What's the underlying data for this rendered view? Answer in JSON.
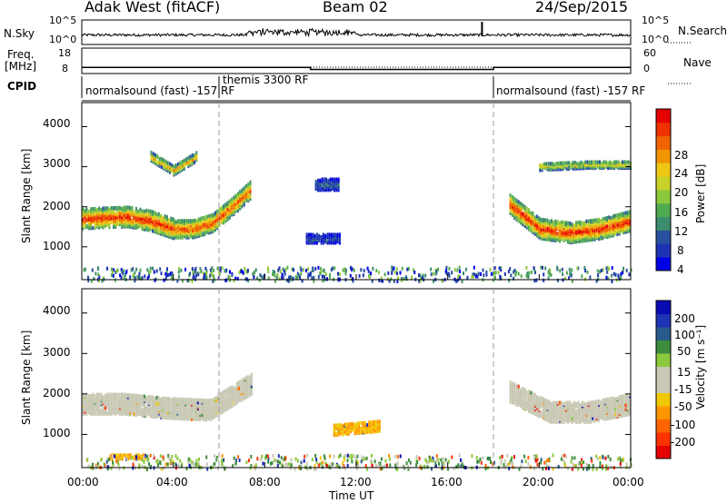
{
  "header": {
    "station": "Adak West (fitACF)",
    "beam": "Beam 02",
    "date": "24/Sep/2015"
  },
  "panels": {
    "noise": {
      "left_label": "N.Sky",
      "right_label": "N.Search",
      "left_ticks": [
        "10^5",
        "10^0"
      ],
      "right_ticks": [
        "10^5",
        "10^0"
      ]
    },
    "freq": {
      "left_label_1": "Freq.",
      "left_label_2": "[MHz]",
      "right_label": "Nave",
      "left_ticks": [
        "18",
        "8"
      ],
      "right_ticks": [
        "60",
        "0"
      ],
      "segments": [
        {
          "start_h": 0.0,
          "end_h": 6.0,
          "freq_mhz": 10.4
        },
        {
          "start_h": 6.0,
          "end_h": 10.0,
          "freq_mhz": 10.4
        },
        {
          "start_h": 10.0,
          "end_h": 18.0,
          "freq_mhz": 9.6
        },
        {
          "start_h": 18.0,
          "end_h": 24.0,
          "freq_mhz": 10.4
        }
      ]
    },
    "cpid": {
      "label": "CPID",
      "modes": [
        {
          "start_h": 0.0,
          "name": "normalsound (fast) -157 RF"
        },
        {
          "start_h": 6.0,
          "name": "themis 3300 RF"
        },
        {
          "start_h": 18.0,
          "name": "normalsound (fast) -157 RF"
        }
      ]
    }
  },
  "chart_data": [
    {
      "type": "heatmap",
      "name": "power",
      "ylabel": "Slant Range [km]",
      "xlabel": "Time UT",
      "x_range_h": [
        0,
        24
      ],
      "y_range_km": [
        180,
        4600
      ],
      "y_ticks": [
        "4000",
        "3000",
        "2000",
        "1000"
      ],
      "y_tick_values": [
        4000,
        3000,
        2000,
        1000
      ],
      "colorbar": {
        "label": "Power [dB]",
        "ticks": [
          "28",
          "24",
          "20",
          "16",
          "12",
          "8",
          "4"
        ],
        "tick_values": [
          28,
          24,
          20,
          16,
          12,
          8,
          4
        ],
        "range": [
          0,
          30
        ],
        "colors": [
          "#0000e6",
          "#1e32b4",
          "#2850a0",
          "#3c8c6e",
          "#50aa50",
          "#8cc83c",
          "#c8d228",
          "#f0c814",
          "#f09600",
          "#f06400",
          "#f03200",
          "#e60000"
        ]
      },
      "features": [
        {
          "t0": 0.0,
          "t1": 4.0,
          "r_center_km": [
            1750,
            1780,
            1800,
            1700,
            1500
          ],
          "width_km": 500,
          "peak_db": 28
        },
        {
          "t0": 4.0,
          "t1": 7.4,
          "r_center_km": [
            1500,
            1500,
            1650,
            2050,
            2500
          ],
          "width_km": 450,
          "peak_db": 26
        },
        {
          "t0": 18.7,
          "t1": 24.0,
          "r_center_km": [
            2100,
            1500,
            1400,
            1500,
            1700
          ],
          "width_km": 500,
          "peak_db": 28
        },
        {
          "t0": 3.0,
          "t1": 5.0,
          "r_center_km": [
            3300,
            2950,
            3300
          ],
          "width_km": 220,
          "peak_db": 22
        },
        {
          "t0": 20.0,
          "t1": 24.0,
          "r_center_km": [
            3050,
            3100,
            3100
          ],
          "width_km": 180,
          "peak_db": 18
        },
        {
          "t0": 9.8,
          "t1": 11.3,
          "r_center_km": [
            1250,
            1250,
            1250
          ],
          "width_km": 220,
          "peak_db": 6
        },
        {
          "t0": 10.2,
          "t1": 11.2,
          "r_center_km": [
            2600,
            2600
          ],
          "width_km": 280,
          "peak_db": 8
        }
      ]
    },
    {
      "type": "heatmap",
      "name": "velocity",
      "ylabel": "Slant Range [km]",
      "xlabel": "Time UT",
      "x_range_h": [
        0,
        24
      ],
      "y_range_km": [
        180,
        4600
      ],
      "y_ticks": [
        "4000",
        "3000",
        "2000",
        "1000"
      ],
      "y_tick_values": [
        4000,
        3000,
        2000,
        1000
      ],
      "colorbar": {
        "label": "Velocity [m s⁻¹]",
        "ticks": [
          "200",
          "100",
          "50",
          "15",
          "-15",
          "-50",
          "-100",
          "-200"
        ],
        "tick_values": [
          200,
          100,
          50,
          15,
          -15,
          -50,
          -100,
          -200
        ],
        "colors": [
          "#e60000",
          "#ff3200",
          "#ff6400",
          "#ff9600",
          "#f0c800",
          "#c8c8b4",
          "#c8c8b4",
          "#8cc83c",
          "#3c8c3c",
          "#285a8c",
          "#1e32b4",
          "#0a0ab4"
        ]
      },
      "features": [
        {
          "t0": 0.0,
          "t1": 7.4,
          "r_center_km": [
            1800,
            1800,
            1700,
            1650,
            2300
          ],
          "width_km": 500,
          "vel": 0
        },
        {
          "t0": 18.7,
          "t1": 24.0,
          "r_center_km": [
            2100,
            1600,
            1600,
            1800
          ],
          "width_km": 500,
          "vel": 0
        },
        {
          "t0": 11.0,
          "t1": 13.0,
          "r_center_km": [
            1150,
            1250
          ],
          "width_km": 250,
          "vel": -60
        },
        {
          "t0": 1.2,
          "t1": 2.8,
          "r_center_km": [
            500
          ],
          "width_km": 120,
          "vel": -40
        }
      ]
    }
  ],
  "xaxis": {
    "ticks": [
      "00:00",
      "04:00",
      "08:00",
      "12:00",
      "16:00",
      "20:00",
      "00:00"
    ],
    "tick_hours": [
      0,
      4,
      8,
      12,
      16,
      20,
      24
    ],
    "label": "Time UT"
  }
}
